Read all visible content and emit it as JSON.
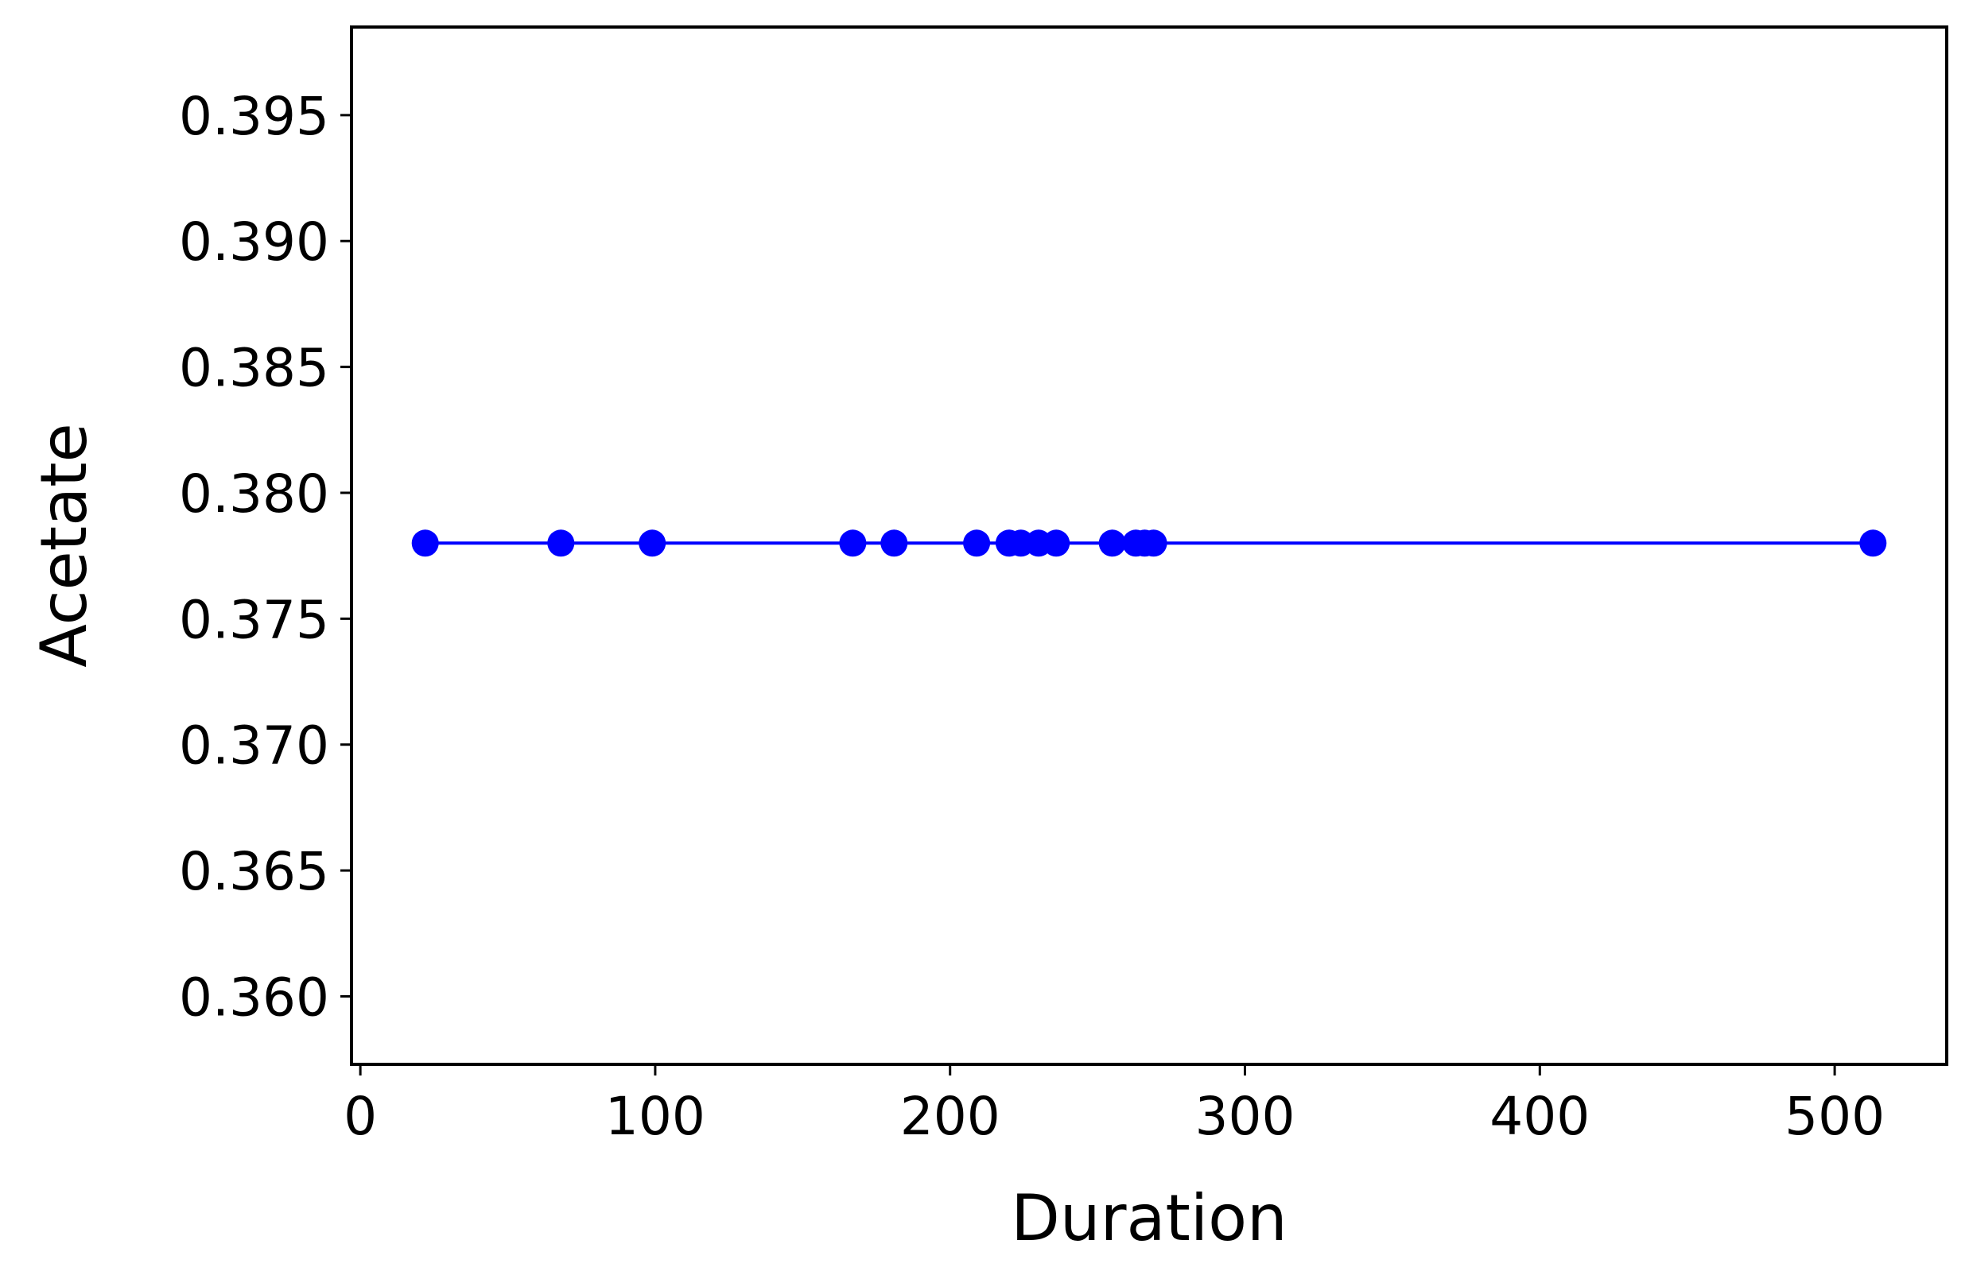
{
  "chart_data": {
    "type": "line",
    "title": "",
    "xlabel": "Duration",
    "ylabel": "Acetate",
    "xlim": [
      -3,
      538
    ],
    "ylim": [
      0.3573,
      0.3985
    ],
    "xticks": [
      0,
      100,
      200,
      300,
      400,
      500
    ],
    "yticks": [
      0.36,
      0.365,
      0.37,
      0.375,
      0.38,
      0.385,
      0.39,
      0.395
    ],
    "xtick_labels": [
      "0",
      "100",
      "200",
      "300",
      "400",
      "500"
    ],
    "ytick_labels": [
      "0.360",
      "0.365",
      "0.370",
      "0.375",
      "0.380",
      "0.385",
      "0.390",
      "0.395"
    ],
    "grid": false,
    "legend": "none",
    "series": [
      {
        "color": "#0000ff",
        "marker": "circle",
        "x": [
          22,
          68,
          99,
          167,
          181,
          209,
          220,
          224,
          230,
          236,
          255,
          263,
          266,
          269,
          513
        ],
        "y": [
          0.378,
          0.378,
          0.378,
          0.378,
          0.378,
          0.378,
          0.378,
          0.378,
          0.378,
          0.378,
          0.378,
          0.378,
          0.378,
          0.378,
          0.378
        ]
      }
    ]
  }
}
